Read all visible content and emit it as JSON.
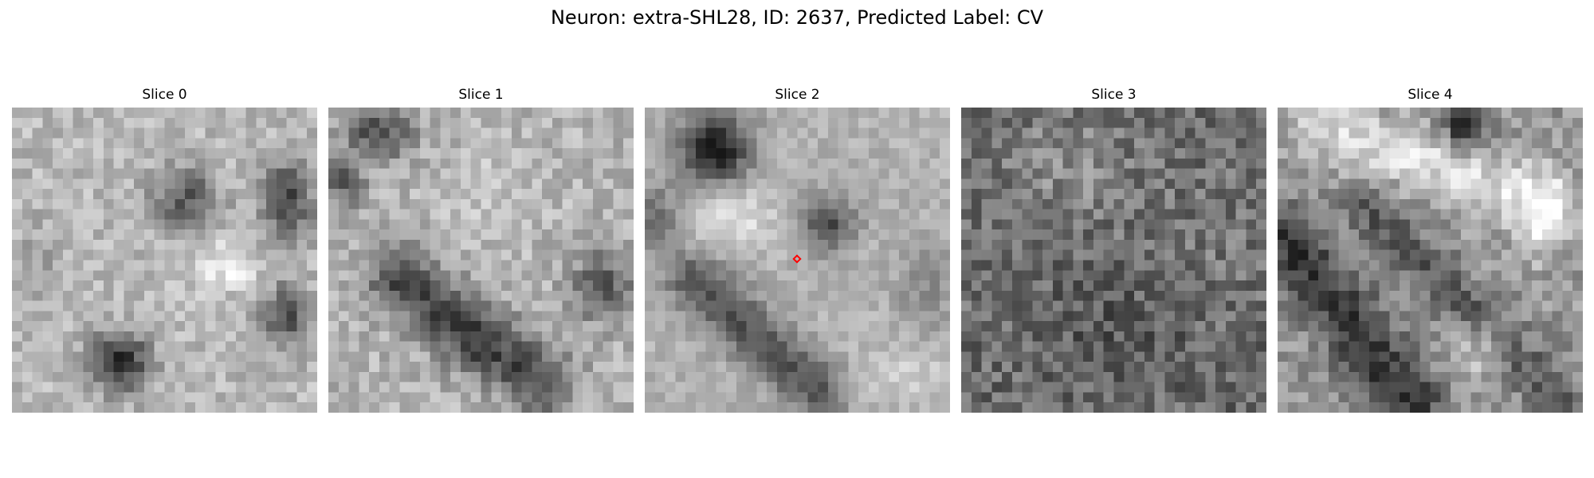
{
  "figure": {
    "title": "Neuron: extra-SHL28, ID: 2637, Predicted Label: CV",
    "marker_color": "#ff0000",
    "colormap": "gray"
  },
  "slices": [
    {
      "label": "Slice 0",
      "has_marker": false
    },
    {
      "label": "Slice 1",
      "has_marker": false
    },
    {
      "label": "Slice 2",
      "has_marker": true
    },
    {
      "label": "Slice 3",
      "has_marker": false
    },
    {
      "label": "Slice 4",
      "has_marker": false
    }
  ]
}
